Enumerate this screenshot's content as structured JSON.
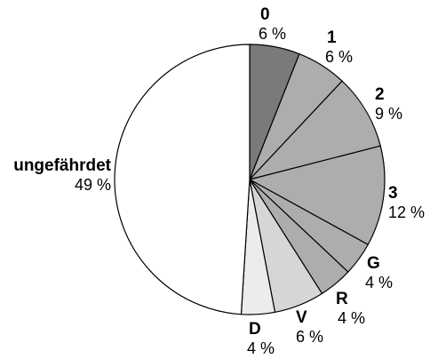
{
  "chart_data": {
    "type": "pie",
    "start_angle_deg": 0,
    "direction": "clockwise",
    "slices": [
      {
        "name": "0",
        "value": 6,
        "value_label": "6 %",
        "color": "#7a7a7a"
      },
      {
        "name": "1",
        "value": 6,
        "value_label": "6 %",
        "color": "#adadad"
      },
      {
        "name": "2",
        "value": 9,
        "value_label": "9 %",
        "color": "#adadad"
      },
      {
        "name": "3",
        "value": 12,
        "value_label": "12 %",
        "color": "#adadad"
      },
      {
        "name": "G",
        "value": 4,
        "value_label": "4 %",
        "color": "#adadad"
      },
      {
        "name": "R",
        "value": 4,
        "value_label": "4 %",
        "color": "#adadad"
      },
      {
        "name": "V",
        "value": 6,
        "value_label": "6 %",
        "color": "#d6d6d6"
      },
      {
        "name": "D",
        "value": 4,
        "value_label": "4 %",
        "color": "#ececec"
      },
      {
        "name": "ungefährdet",
        "value": 49,
        "value_label": "49 %",
        "color": "#ffffff"
      }
    ]
  }
}
